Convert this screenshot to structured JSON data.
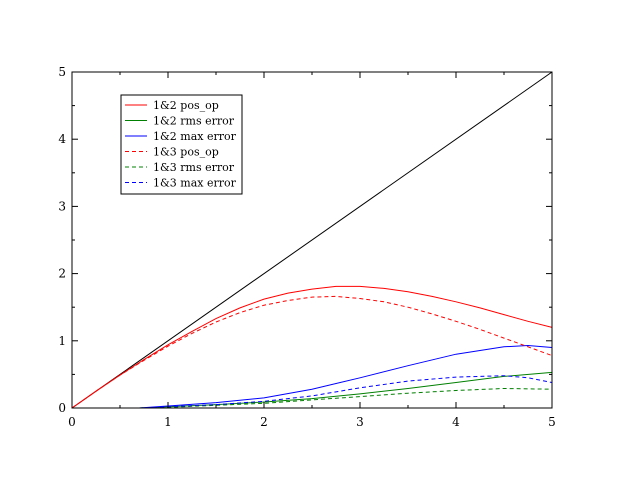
{
  "chart_data": {
    "type": "line",
    "title": "",
    "xlabel": "",
    "ylabel": "",
    "xlim": [
      0,
      5
    ],
    "ylim": [
      0,
      5
    ],
    "xticks": [
      0,
      1,
      2,
      3,
      4,
      5
    ],
    "yticks": [
      0,
      1,
      2,
      3,
      4,
      5
    ],
    "grid": false,
    "legend_position": "top-left",
    "reference_line": {
      "color": "#000000",
      "points": [
        [
          0,
          0
        ],
        [
          5,
          5
        ]
      ]
    },
    "series": [
      {
        "name": "1&2 pos_op",
        "color": "#ff0000",
        "dash": "solid",
        "points": [
          [
            0,
            0
          ],
          [
            0.25,
            0.25
          ],
          [
            0.5,
            0.49
          ],
          [
            0.75,
            0.72
          ],
          [
            1,
            0.94
          ],
          [
            1.25,
            1.14
          ],
          [
            1.5,
            1.33
          ],
          [
            1.75,
            1.49
          ],
          [
            2,
            1.62
          ],
          [
            2.25,
            1.71
          ],
          [
            2.5,
            1.77
          ],
          [
            2.75,
            1.81
          ],
          [
            3,
            1.81
          ],
          [
            3.25,
            1.78
          ],
          [
            3.5,
            1.73
          ],
          [
            3.75,
            1.66
          ],
          [
            4,
            1.58
          ],
          [
            4.25,
            1.49
          ],
          [
            4.5,
            1.39
          ],
          [
            4.75,
            1.29
          ],
          [
            5,
            1.2
          ]
        ]
      },
      {
        "name": "1&2 rms error",
        "color": "#008000",
        "dash": "solid",
        "points": [
          [
            0.7,
            0.0
          ],
          [
            1,
            0.02
          ],
          [
            1.5,
            0.05
          ],
          [
            2,
            0.09
          ],
          [
            2.5,
            0.14
          ],
          [
            3,
            0.21
          ],
          [
            3.5,
            0.29
          ],
          [
            4,
            0.38
          ],
          [
            4.5,
            0.47
          ],
          [
            5,
            0.53
          ]
        ]
      },
      {
        "name": "1&2 max error",
        "color": "#0000ff",
        "dash": "solid",
        "points": [
          [
            0.7,
            0.0
          ],
          [
            1,
            0.03
          ],
          [
            1.5,
            0.08
          ],
          [
            2,
            0.15
          ],
          [
            2.5,
            0.28
          ],
          [
            3,
            0.45
          ],
          [
            3.5,
            0.63
          ],
          [
            4,
            0.8
          ],
          [
            4.5,
            0.91
          ],
          [
            4.75,
            0.93
          ],
          [
            5,
            0.9
          ]
        ]
      },
      {
        "name": "1&3 pos_op",
        "color": "#ff0000",
        "dash": "dashed",
        "points": [
          [
            0,
            0
          ],
          [
            0.25,
            0.25
          ],
          [
            0.5,
            0.49
          ],
          [
            0.75,
            0.71
          ],
          [
            1,
            0.92
          ],
          [
            1.25,
            1.11
          ],
          [
            1.5,
            1.28
          ],
          [
            1.75,
            1.42
          ],
          [
            2,
            1.53
          ],
          [
            2.25,
            1.6
          ],
          [
            2.5,
            1.65
          ],
          [
            2.75,
            1.66
          ],
          [
            3,
            1.63
          ],
          [
            3.25,
            1.58
          ],
          [
            3.5,
            1.5
          ],
          [
            3.75,
            1.4
          ],
          [
            4,
            1.29
          ],
          [
            4.25,
            1.17
          ],
          [
            4.5,
            1.04
          ],
          [
            4.75,
            0.91
          ],
          [
            5,
            0.78
          ]
        ]
      },
      {
        "name": "1&3 rms error",
        "color": "#008000",
        "dash": "dashed",
        "points": [
          [
            0.7,
            0.0
          ],
          [
            1,
            0.01
          ],
          [
            1.5,
            0.04
          ],
          [
            2,
            0.07
          ],
          [
            2.5,
            0.12
          ],
          [
            3,
            0.17
          ],
          [
            3.5,
            0.22
          ],
          [
            4,
            0.26
          ],
          [
            4.5,
            0.29
          ],
          [
            5,
            0.28
          ]
        ]
      },
      {
        "name": "1&3 max error",
        "color": "#0000ff",
        "dash": "dashed",
        "points": [
          [
            0.7,
            0.0
          ],
          [
            1,
            0.02
          ],
          [
            1.5,
            0.05
          ],
          [
            2,
            0.1
          ],
          [
            2.5,
            0.18
          ],
          [
            3,
            0.3
          ],
          [
            3.5,
            0.4
          ],
          [
            4,
            0.46
          ],
          [
            4.5,
            0.48
          ],
          [
            4.75,
            0.45
          ],
          [
            5,
            0.38
          ]
        ]
      }
    ]
  }
}
